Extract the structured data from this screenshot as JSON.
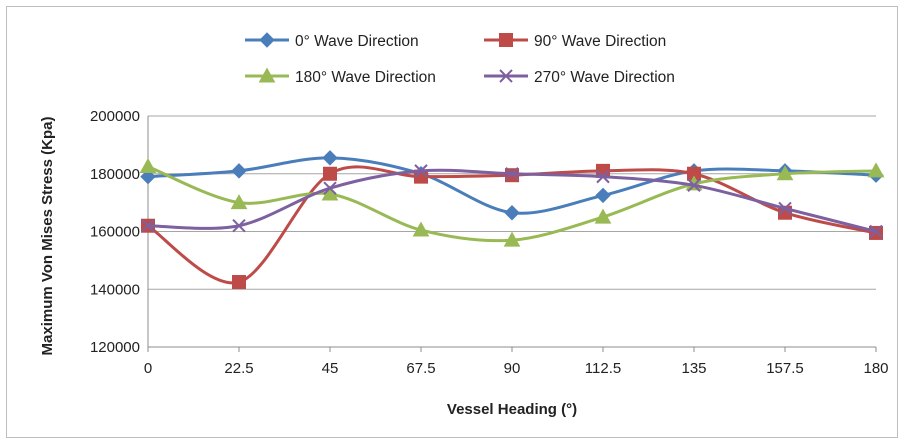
{
  "chart_data": {
    "type": "line",
    "xlabel": "Vessel Heading (°)",
    "ylabel": "Maximum Von Mises Stress (Kpa)",
    "categories": [
      "0",
      "22.5",
      "45",
      "67.5",
      "90",
      "112.5",
      "135",
      "157.5",
      "180"
    ],
    "ylim": [
      120000,
      200000
    ],
    "yticks": [
      "120000",
      "140000",
      "160000",
      "180000",
      "200000"
    ],
    "grid": "horizontal",
    "legend_position": "top",
    "series": [
      {
        "name": "0° Wave Direction",
        "color": "#4a7ebb",
        "marker": "diamond",
        "values": [
          179000,
          181000,
          185500,
          180000,
          166500,
          172500,
          181000,
          181000,
          179500
        ]
      },
      {
        "name": "90° Wave Direction",
        "color": "#be4b48",
        "marker": "square",
        "values": [
          162000,
          142500,
          180000,
          179000,
          179500,
          181000,
          180000,
          166500,
          159500
        ]
      },
      {
        "name": "180° Wave Direction",
        "color": "#98b954",
        "marker": "triangle",
        "values": [
          182500,
          170000,
          173000,
          160500,
          157000,
          165000,
          176500,
          180000,
          181000
        ]
      },
      {
        "name": "270° Wave Direction",
        "color": "#7d60a0",
        "marker": "x",
        "values": [
          162000,
          162000,
          175000,
          181000,
          180000,
          179000,
          176000,
          168000,
          160000
        ]
      }
    ]
  }
}
